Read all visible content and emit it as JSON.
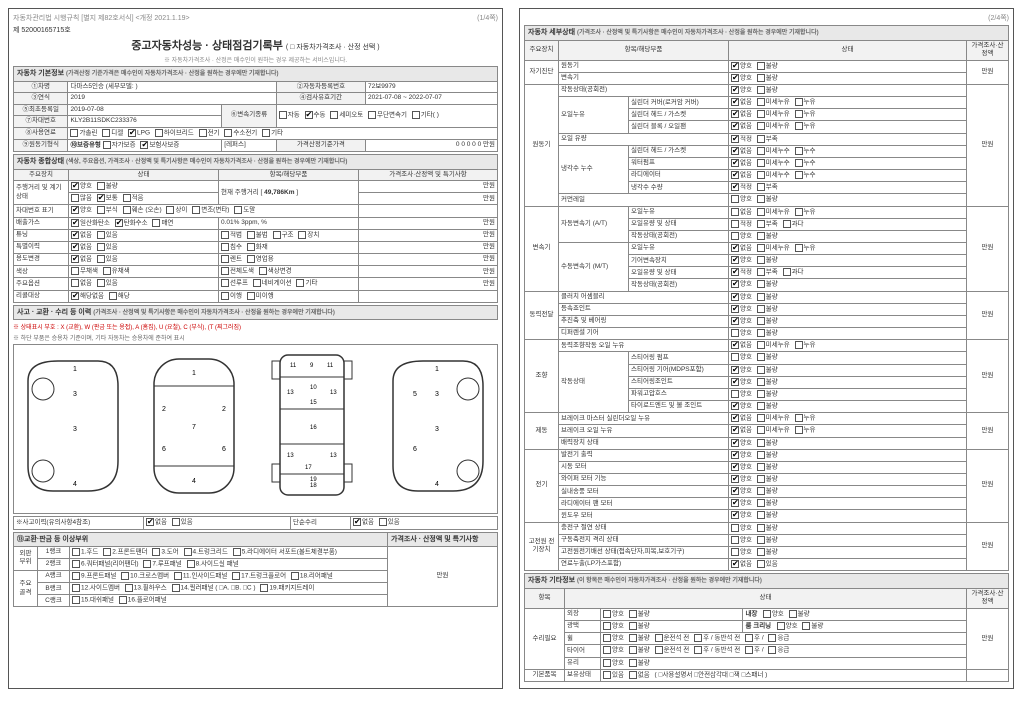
{
  "meta": {
    "regulation": "자동차관리법 시행규칙 [별지 제82호서식] <개정 2021.1.19>",
    "page1": "(1/4쪽)",
    "page2": "(2/4쪽)"
  },
  "doc_no": "제 52000165715호",
  "title": "중고자동차성능 · 상태점검기록부",
  "title_opts": "( □ 자동차가격조사 · 산정 선택 )",
  "note1": "※ 자동차가격조사 · 산정은 매수인이 원하는 경우 제공하는 서비스입니다.",
  "section1": {
    "hd": "자동차 기본정보",
    "hd_note": "(가격산정 기준가격은 매수인이 자동차가격조사 · 산정을 원하는 경우에만 기재합니다)",
    "rows": {
      "car_name_lbl": "①차명",
      "car_name": "다마스5인승 (세부모델: )",
      "reg_no_lbl": "②자동차등록번호",
      "reg_no": "72보9979",
      "year_lbl": "③연식",
      "year": "2019",
      "valid_lbl": "④검사유효기간",
      "valid": "2021-07-08 ~ 2022-07-07",
      "first_reg_lbl": "⑤최초등록일",
      "first_reg": "2019-07-08",
      "trans_lbl": "⑥변속기종류",
      "trans_opts": [
        "자동",
        "수동",
        "세미오토",
        "무단변속기",
        "기타( )"
      ],
      "trans_sel": 1,
      "vin_lbl": "⑦차대번호",
      "vin": "KLY2B11SDKC233376",
      "fuel_lbl": "⑧사용연료",
      "fuel_opts": [
        "가솔린",
        "디젤",
        "LPG",
        "하이브리드",
        "전기",
        "수소전기",
        "기타"
      ],
      "fuel_sel": 2,
      "motor_lbl": "⑨원동기형식",
      "warranty_lbl": "⑩보증유형",
      "warranty_opts": [
        "자가보증",
        "보험사보증"
      ],
      "warranty_sel": 1,
      "ref_lbl": "[레퍼스]",
      "price_lbl": "가격산정기준가격",
      "price": "0 0 0 0 0 만원"
    }
  },
  "section2": {
    "hd": "자동차 종합상태",
    "hd_note": "(색상, 주요옵션, 가격조사 · 산정액 및 특기사항은 매수인이 자동차가격조사 · 산정을 원하는 경우에만 기재합니다)",
    "cols": [
      "주요장치",
      "상태",
      "항목/해당부품",
      "가격조사·산정액 및 특기사항"
    ],
    "odometer_lbl": "주행거리 및 계기상태",
    "odometer_opts": [
      "양호",
      "불량",
      "많음",
      "보통",
      "적음"
    ],
    "odometer_sel": [
      0,
      3
    ],
    "odometer_v_lbl": "현재 주행거리 [",
    "odometer_v": "49,786Km",
    "odometer_v_end": "]",
    "vin_mark_lbl": "차대번호 표기",
    "vin_mark_opts": [
      "양호",
      "부식",
      "훼손 (오손)",
      "상이",
      "변조(변타)",
      "도말"
    ],
    "vin_mark_sel": [
      0
    ],
    "emission_lbl": "배출가스",
    "emission_opts": [
      "일산화탄소",
      "탄화수소",
      "매연"
    ],
    "emission_sel": [
      0,
      1
    ],
    "emission_vals": "0.01%        3ppm,          %",
    "tuning_lbl": "튜닝",
    "tuning_opts": [
      "없음",
      "있음",
      "적법",
      "불법",
      "구조",
      "장치"
    ],
    "tuning_sel": [
      0
    ],
    "hist_lbl": "특별이력",
    "hist_opts": [
      "없음",
      "있음",
      "침수",
      "화재"
    ],
    "hist_sel": [
      0
    ],
    "use_lbl": "용도변경",
    "use_opts": [
      "없음",
      "있음",
      "렌트",
      "영업용"
    ],
    "use_sel": [
      0
    ],
    "color_lbl": "색상",
    "color_opts": [
      "무채색",
      "유채색",
      "전체도색",
      "색상변경"
    ],
    "color_sel": [],
    "option_lbl": "주요옵션",
    "option_opts": [
      "없음",
      "있음",
      "선루프",
      "네비게이션",
      "기타"
    ],
    "option_sel": [],
    "recall_lbl": "리콜대상",
    "recall_opts": [
      "해당없음",
      "해당",
      "이행",
      "미이행"
    ],
    "recall_sel": [
      0
    ],
    "unit": "만원"
  },
  "section3": {
    "hd": "사고 · 교환 · 수리 등 이력",
    "hd_note": "(가격조사 · 산정액 및 특기사항은 매수인이 자동차가격조사 · 산정을 원하는 경우에만 기재합니다)",
    "legend": "※ 상태표시 부호 : X (교환), W (판금 또는 용접), A (흠집), U (요철), C (부식), (T (찌그러짐)",
    "legend2": "※ 하단 부품은 승용차 기준이며, 기타 자동차는 승용차에 준하여 표시",
    "car_nums": [
      1,
      2,
      3,
      4,
      5,
      6,
      7,
      8,
      9,
      10,
      11,
      12,
      13,
      14,
      15,
      16,
      17,
      18,
      19
    ],
    "acc_lbl": "※사고이력(유의사항4참조)",
    "acc_opts": [
      "없음",
      "있음"
    ],
    "acc_sel": 0,
    "repair_lbl": "단순수리",
    "repair_opts": [
      "없음",
      "있음"
    ],
    "repair_sel": 0
  },
  "section4": {
    "hd": "⑬교환·판금 등 이상부위",
    "col_price": "가격조사 · 산정액 및 특기사항",
    "rank_outer": "외판 부위",
    "rank1": "1랭크",
    "rank1_items": [
      "1.후드",
      "2.프론트팬더",
      "3.도어",
      "4.트렁크리드",
      "5.라디에이터 서포트(볼트체결부품)"
    ],
    "rank2": "2랭크",
    "rank2_items": [
      "6.쿼터패널(리어팬더)",
      "7.루프패널",
      "8.사이드실 패널"
    ],
    "rank_main": "주요 골격",
    "rankA": "A랭크",
    "rankA_items": [
      "9.프론트패널",
      "10.크로스멤버",
      "11.인사이드패널",
      "17.트렁크플로어",
      "18.리어패널"
    ],
    "rankB": "B랭크",
    "rankB_items": [
      "12.사이드멤버",
      "13.휠하우스",
      "14.필러패널 ( □A. □B. □C )",
      "19.패키지트레이"
    ],
    "rankC": "C랭크",
    "rankC_items": [
      "15.대쉬패널",
      "16.플로어패널"
    ],
    "unit": "만원"
  },
  "page2_hd": {
    "title": "자동차 세부상태",
    "note": "(가격조사 · 산정액 및 특기사항은 매수인이 자동차가격조사 · 산정을 원하는 경우에만 기재합니다)",
    "cols": [
      "주요장치",
      "항목/해당부품",
      "",
      "상태",
      "가격조사·산정액"
    ]
  },
  "p2": {
    "selfdiag": "자기진단",
    "engine": "원동기",
    "trans": "변속기",
    "power": "동력전달",
    "steer": "조향",
    "brake": "제동",
    "elec": "전기",
    "hv": "고전원 전기장치",
    "unit": "만원",
    "rows": [
      {
        "cat": "자기진단",
        "sub": "",
        "item": "원동기",
        "o": [
          "양호",
          "불량"
        ],
        "s": 0
      },
      {
        "cat": "",
        "sub": "",
        "item": "변속기",
        "o": [
          "양호",
          "불량"
        ],
        "s": 0
      },
      {
        "cat": "원동기",
        "sub": "",
        "item": "작동상태(공회전)",
        "o": [
          "양호",
          "불량"
        ],
        "s": 0
      },
      {
        "cat": "",
        "sub": "오일누유",
        "item": "실린더 커버(로커암 커버)",
        "o": [
          "없음",
          "미세누유",
          "누유"
        ],
        "s": 0
      },
      {
        "cat": "",
        "sub": "",
        "item": "실린더 헤드 / 가스켓",
        "o": [
          "없음",
          "미세누유",
          "누유"
        ],
        "s": 0
      },
      {
        "cat": "",
        "sub": "",
        "item": "실린더 블록 / 오일팬",
        "o": [
          "없음",
          "미세누유",
          "누유"
        ],
        "s": 0
      },
      {
        "cat": "",
        "sub": "",
        "item": "오일 유량",
        "o": [
          "적정",
          "부족"
        ],
        "s": 0
      },
      {
        "cat": "",
        "sub": "냉각수 누수",
        "item": "실린더 헤드 / 가스켓",
        "o": [
          "없음",
          "미세누수",
          "누수"
        ],
        "s": 0
      },
      {
        "cat": "",
        "sub": "",
        "item": "워터펌프",
        "o": [
          "없음",
          "미세누수",
          "누수"
        ],
        "s": 0
      },
      {
        "cat": "",
        "sub": "",
        "item": "라디에이터",
        "o": [
          "없음",
          "미세누수",
          "누수"
        ],
        "s": 0
      },
      {
        "cat": "",
        "sub": "",
        "item": "냉각수 수량",
        "o": [
          "적정",
          "부족"
        ],
        "s": 0
      },
      {
        "cat": "",
        "sub": "",
        "item": "커먼레일",
        "o": [
          "양호",
          "불량"
        ],
        "s": -1
      },
      {
        "cat": "변속기",
        "sub": "자동변속기 (A/T)",
        "item": "오일누유",
        "o": [
          "없음",
          "미세누유",
          "누유"
        ],
        "s": -1
      },
      {
        "cat": "",
        "sub": "",
        "item": "오일유량 및 상태",
        "o": [
          "적정",
          "부족",
          "과다"
        ],
        "s": -1
      },
      {
        "cat": "",
        "sub": "",
        "item": "작동상태(공회전)",
        "o": [
          "양호",
          "불량"
        ],
        "s": -1
      },
      {
        "cat": "",
        "sub": "수동변속기 (M/T)",
        "item": "오일누유",
        "o": [
          "없음",
          "미세누유",
          "누유"
        ],
        "s": 0
      },
      {
        "cat": "",
        "sub": "",
        "item": "기어변속장치",
        "o": [
          "양호",
          "불량"
        ],
        "s": 0
      },
      {
        "cat": "",
        "sub": "",
        "item": "오일유량 및 상태",
        "o": [
          "적정",
          "부족",
          "과다"
        ],
        "s": 0
      },
      {
        "cat": "",
        "sub": "",
        "item": "작동상태(공회전)",
        "o": [
          "양호",
          "불량"
        ],
        "s": 0
      },
      {
        "cat": "동력전달",
        "sub": "",
        "item": "클러치 어셈블리",
        "o": [
          "양호",
          "불량"
        ],
        "s": 0
      },
      {
        "cat": "",
        "sub": "",
        "item": "등속죠인트",
        "o": [
          "양호",
          "불량"
        ],
        "s": 0
      },
      {
        "cat": "",
        "sub": "",
        "item": "추진축 및 베어링",
        "o": [
          "양호",
          "불량"
        ],
        "s": 0
      },
      {
        "cat": "",
        "sub": "",
        "item": "디퍼렌셜 기어",
        "o": [
          "양호",
          "불량"
        ],
        "s": -1
      },
      {
        "cat": "조향",
        "sub": "",
        "item": "동력조향작동 오일 누유",
        "o": [
          "없음",
          "미세누유",
          "누유"
        ],
        "s": 0
      },
      {
        "cat": "",
        "sub": "작동상태",
        "item": "스티어링 펌프",
        "o": [
          "양호",
          "불량"
        ],
        "s": -1
      },
      {
        "cat": "",
        "sub": "",
        "item": "스티어링 기어(MDPS포함)",
        "o": [
          "양호",
          "불량"
        ],
        "s": 0
      },
      {
        "cat": "",
        "sub": "",
        "item": "스티어링조인트",
        "o": [
          "양호",
          "불량"
        ],
        "s": 0
      },
      {
        "cat": "",
        "sub": "",
        "item": "파워고압호스",
        "o": [
          "양호",
          "불량"
        ],
        "s": -1
      },
      {
        "cat": "",
        "sub": "",
        "item": "타이로드엔드 및 볼 조인트",
        "o": [
          "양호",
          "불량"
        ],
        "s": 0
      },
      {
        "cat": "제동",
        "sub": "",
        "item": "브레이크 마스터 실린더오일 누유",
        "o": [
          "없음",
          "미세누유",
          "누유"
        ],
        "s": 0
      },
      {
        "cat": "",
        "sub": "",
        "item": "브레이크 오일 누유",
        "o": [
          "없음",
          "미세누유",
          "누유"
        ],
        "s": 0
      },
      {
        "cat": "",
        "sub": "",
        "item": "배력장치 상태",
        "o": [
          "양호",
          "불량"
        ],
        "s": 0
      },
      {
        "cat": "전기",
        "sub": "",
        "item": "발전기 출력",
        "o": [
          "양호",
          "불량"
        ],
        "s": 0
      },
      {
        "cat": "",
        "sub": "",
        "item": "시동 모터",
        "o": [
          "양호",
          "불량"
        ],
        "s": 0
      },
      {
        "cat": "",
        "sub": "",
        "item": "와이퍼 모터 기능",
        "o": [
          "양호",
          "불량"
        ],
        "s": 0
      },
      {
        "cat": "",
        "sub": "",
        "item": "실내송풍 모터",
        "o": [
          "양호",
          "불량"
        ],
        "s": 0
      },
      {
        "cat": "",
        "sub": "",
        "item": "라디에이터 팬 모터",
        "o": [
          "양호",
          "불량"
        ],
        "s": 0
      },
      {
        "cat": "",
        "sub": "",
        "item": "윈도우 모터",
        "o": [
          "양호",
          "불량"
        ],
        "s": 0
      },
      {
        "cat": "고전원 전기장치",
        "sub": "",
        "item": "충전구 절연 상태",
        "o": [
          "양호",
          "불량"
        ],
        "s": -1
      },
      {
        "cat": "",
        "sub": "",
        "item": "구동축전지 격리 상태",
        "o": [
          "양호",
          "불량"
        ],
        "s": -1
      },
      {
        "cat": "",
        "sub": "",
        "item": "고전원전기배선 상태(접속단자,피복,보호기구)",
        "o": [
          "양호",
          "불량"
        ],
        "s": -1
      },
      {
        "cat": "",
        "sub": "",
        "item": "연료누출(LP가스포함)",
        "o": [
          "없음",
          "있음"
        ],
        "s": 0
      }
    ]
  },
  "section5": {
    "hd": "자동차 기타정보",
    "note": "(이 항목은 매수인이 자동차가격조사 · 산정을 원하는 경우에만 기재합니다)",
    "cols": [
      "항목",
      "",
      "상태",
      "가격조사·산정액"
    ],
    "rows": {
      "ext_lbl": "수리필요",
      "ext": "외장",
      "ext_o": [
        "양호",
        "불량"
      ],
      "int": "내장",
      "int_o": [
        "양호",
        "불량"
      ],
      "gloss": "광택",
      "gloss_o": [
        "양호",
        "불량"
      ],
      "clean": "룸 크리닝",
      "clean_o": [
        "양호",
        "불량"
      ],
      "wheel": "휠",
      "wheel_o": [
        "양호",
        "불량",
        "운전석 전",
        "후 / 동반석 전",
        "후 /",
        "응급"
      ],
      "tire": "타이어",
      "tire_o": [
        "양호",
        "불량",
        "운전석 전",
        "후 / 동반석 전",
        "후 /",
        "응급"
      ],
      "glass": "유리",
      "glass_o": [
        "양호",
        "불량"
      ],
      "basic_lbl": "기본품목",
      "basic": "보유상태",
      "basic_o": [
        "있음",
        "없음",
        "( □사용설명서 □안전삼각대 □잭 □스패너 )"
      ]
    },
    "unit": "만원"
  }
}
